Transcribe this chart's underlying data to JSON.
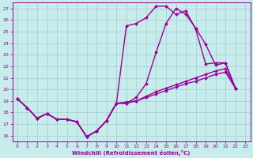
{
  "xlabel": "Windchill (Refroidissement éolien,°C)",
  "xlim": [
    -0.5,
    23.5
  ],
  "ylim": [
    15.5,
    27.5
  ],
  "yticks": [
    16,
    17,
    18,
    19,
    20,
    21,
    22,
    23,
    24,
    25,
    26,
    27
  ],
  "xticks": [
    0,
    1,
    2,
    3,
    4,
    5,
    6,
    7,
    8,
    9,
    10,
    11,
    12,
    13,
    14,
    15,
    16,
    17,
    18,
    19,
    20,
    21,
    22,
    23
  ],
  "bg_color": "#c8ecec",
  "grid_color": "#9ecece",
  "line_color": "#990099",
  "line_width": 1.0,
  "marker": "D",
  "marker_size": 2.0,
  "shared_start": [
    19.2,
    18.4,
    17.5,
    17.9,
    17.4,
    17.4,
    17.2,
    15.9,
    16.4,
    17.3
  ],
  "line1_tail": [
    18.8,
    25.5,
    25.7,
    26.2,
    27.2,
    27.2,
    26.5,
    26.8,
    25.2,
    22.2,
    22.3,
    22.3,
    20.1
  ],
  "line2_tail": [
    18.8,
    18.8,
    19.3,
    20.5,
    23.2,
    25.7,
    27.0,
    26.5,
    25.3,
    23.9,
    22.1,
    22.3,
    20.1
  ],
  "line3_tail": [
    18.8,
    18.8,
    19.0,
    19.4,
    19.8,
    20.1,
    20.4,
    20.7,
    21.0,
    21.3,
    21.6,
    21.8,
    20.1
  ],
  "line4_tail": [
    18.8,
    18.9,
    19.0,
    19.3,
    19.6,
    19.9,
    20.2,
    20.5,
    20.7,
    21.0,
    21.3,
    21.5,
    20.1
  ]
}
